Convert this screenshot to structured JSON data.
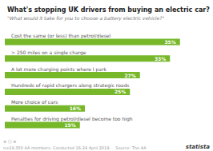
{
  "chart_data": {
    "type": "bar",
    "orientation": "horizontal",
    "title": "What's stopping UK drivers from buying an electric car?",
    "subtitle": "\"What would it take for you to choose a battery electric vehicle?\"",
    "categories": [
      "Cost the same (or less) than petrol/diesel",
      "> 250 miles on a single charge",
      "A lot more charging points where I park",
      "Hundreds of rapid chargers along strategic roads",
      "More choice of cars",
      "Penalties for driving petrol/diesel become too high"
    ],
    "values": [
      35,
      33,
      27,
      25,
      16,
      15
    ],
    "value_labels": [
      "35%",
      "33%",
      "27%",
      "25%",
      "16%",
      "15%"
    ],
    "data_labels": true,
    "color": "#76b82a",
    "xlim": [
      0,
      40
    ],
    "grid": false,
    "tick_labels": false,
    "annotations": [
      "n=19,350 AA members. Conducted 16-24 April 2019.    Source: The AA",
      "statista",
      "⊕ ⓘ ⊕"
    ]
  }
}
